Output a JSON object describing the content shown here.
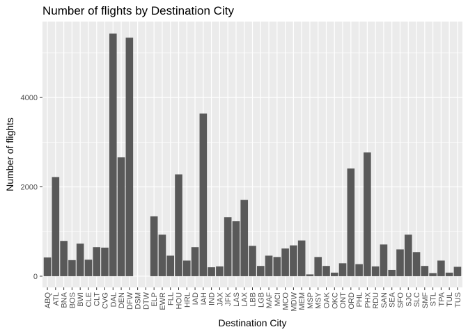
{
  "chart_data": {
    "type": "bar",
    "title": "Number of flights by Destination City",
    "xlabel": "Destination City",
    "ylabel": "Number of flights",
    "ylim": [
      -250,
      5700
    ],
    "yticks": [
      0,
      2000,
      4000
    ],
    "ytick_labels": [
      "0",
      "2000",
      "4000"
    ],
    "grid": true,
    "bar_color": "#595959",
    "panel_background": "#ebebeb",
    "grid_color": "#ffffff",
    "categories": [
      "ABQ",
      "ATL",
      "BNA",
      "BOS",
      "BWI",
      "CLE",
      "CLT",
      "CVG",
      "DAL",
      "DEN",
      "DFW",
      "DSM",
      "DTW",
      "ELP",
      "EWR",
      "FLL",
      "HOU",
      "HRL",
      "IAD",
      "IAH",
      "IND",
      "JAX",
      "JFK",
      "LAS",
      "LAX",
      "LBB",
      "LGB",
      "MAF",
      "MCI",
      "MCO",
      "MDW",
      "MEM",
      "MSP",
      "MSY",
      "OAK",
      "OKC",
      "ONT",
      "ORD",
      "PHL",
      "PHX",
      "RDU",
      "SAN",
      "SEA",
      "SFO",
      "SJC",
      "SLC",
      "SMF",
      "STL",
      "TPA",
      "TUL",
      "TUS"
    ],
    "values": [
      420,
      2220,
      790,
      360,
      730,
      370,
      650,
      640,
      5430,
      2660,
      5340,
      0,
      0,
      1340,
      930,
      460,
      2280,
      350,
      650,
      3640,
      200,
      220,
      1320,
      1230,
      1710,
      680,
      230,
      460,
      430,
      620,
      690,
      800,
      40,
      430,
      230,
      80,
      290,
      2410,
      270,
      2770,
      220,
      710,
      140,
      600,
      930,
      540,
      230,
      70,
      350,
      80,
      210
    ]
  }
}
